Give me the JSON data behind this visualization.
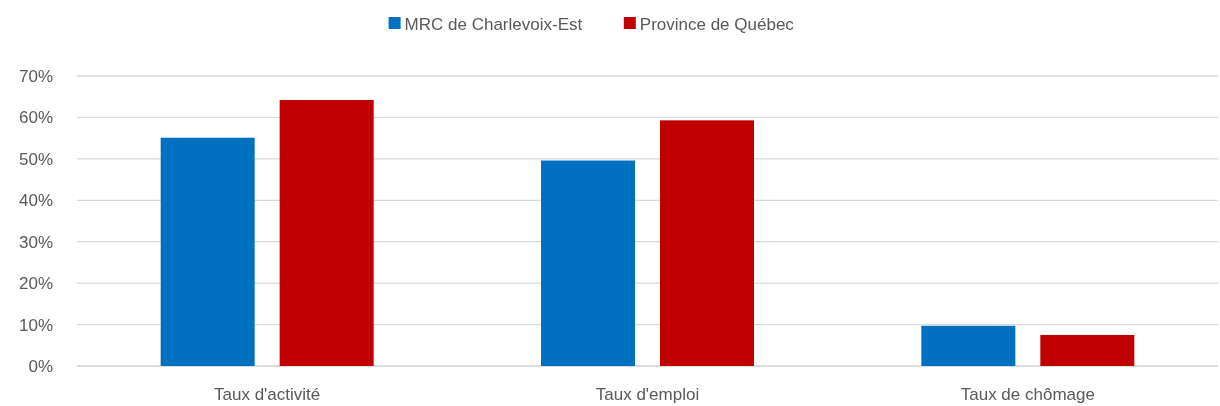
{
  "chart_data": {
    "type": "bar",
    "categories": [
      "Taux d'activité",
      "Taux d'emploi",
      "Taux de chômage"
    ],
    "series": [
      {
        "name": "MRC de Charlevoix-Est",
        "color": "#0070c0",
        "values": [
          55.1,
          49.6,
          9.7
        ]
      },
      {
        "name": "Province de Québec",
        "color": "#c00000",
        "values": [
          64.2,
          59.3,
          7.5
        ]
      }
    ],
    "ylim": [
      0,
      70
    ],
    "yticks": [
      {
        "value": 0,
        "label": "0%"
      },
      {
        "value": 10,
        "label": "10%"
      },
      {
        "value": 20,
        "label": "20%"
      },
      {
        "value": 30,
        "label": "30%"
      },
      {
        "value": 40,
        "label": "40%"
      },
      {
        "value": 50,
        "label": "50%"
      },
      {
        "value": 60,
        "label": "60%"
      },
      {
        "value": 70,
        "label": "70%"
      }
    ],
    "grid": "y",
    "legend": "top"
  }
}
